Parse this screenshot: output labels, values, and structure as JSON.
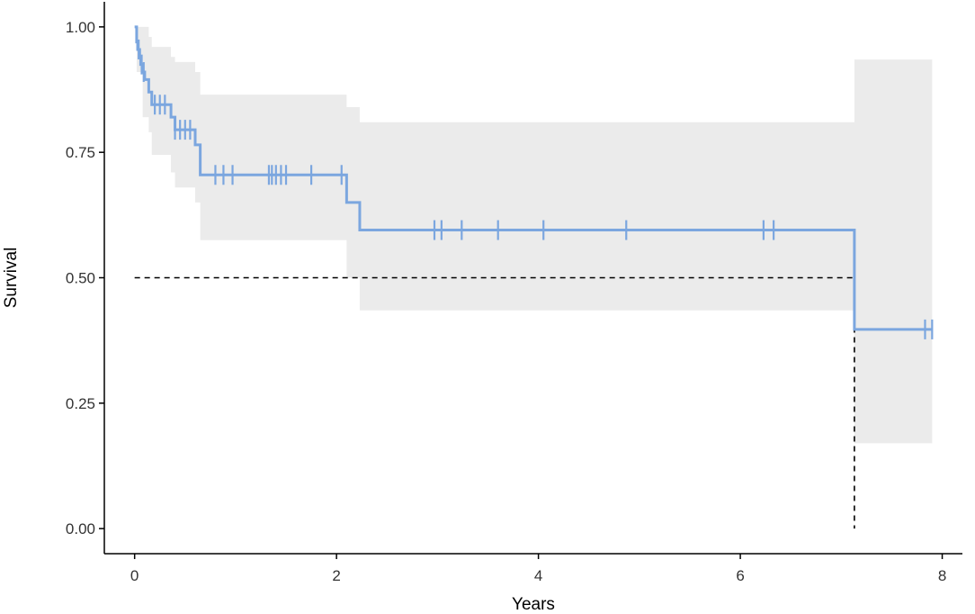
{
  "chart_data": {
    "type": "line",
    "subtype": "kaplan-meier",
    "title": "",
    "xlabel": "Years",
    "ylabel": "Survival",
    "xlim": [
      -0.3,
      8.2
    ],
    "ylim": [
      -0.05,
      1.05
    ],
    "x_ticks": [
      0,
      2,
      4,
      6,
      8
    ],
    "x_tick_labels": [
      "0",
      "2",
      "4",
      "6",
      "8"
    ],
    "y_ticks": [
      0,
      0.25,
      0.5,
      0.75,
      1
    ],
    "y_tick_labels": [
      "0.00",
      "0.25",
      "0.50",
      "0.75",
      "1.00"
    ],
    "grid": false,
    "legend": "none",
    "colors": {
      "line": "#7ba6df",
      "ci_band": "#ebebeb",
      "reference": "#000000"
    },
    "series": [
      {
        "steps": [
          [
            0,
            1.0
          ],
          [
            0.02,
            0.97
          ],
          [
            0.03,
            0.955
          ],
          [
            0.05,
            0.94
          ],
          [
            0.06,
            0.925
          ],
          [
            0.08,
            0.91
          ],
          [
            0.1,
            0.895
          ],
          [
            0.14,
            0.87
          ],
          [
            0.17,
            0.845
          ],
          [
            0.36,
            0.82
          ],
          [
            0.4,
            0.795
          ],
          [
            0.6,
            0.765
          ],
          [
            0.65,
            0.705
          ],
          [
            2.1,
            0.65
          ],
          [
            2.23,
            0.595
          ],
          [
            7.13,
            0.397
          ],
          [
            7.9,
            0.397
          ]
        ],
        "censored": [
          0.04,
          0.07,
          0.09,
          0.2,
          0.25,
          0.3,
          0.4,
          0.45,
          0.5,
          0.55,
          0.8,
          0.88,
          0.97,
          1.33,
          1.36,
          1.4,
          1.45,
          1.5,
          1.75,
          2.05,
          2.97,
          3.04,
          3.24,
          3.6,
          4.05,
          4.87,
          6.23,
          6.33,
          7.83,
          7.9
        ],
        "ci": [
          [
            0,
            1.0,
            1.0
          ],
          [
            0.02,
            0.91,
            1.0
          ],
          [
            0.08,
            0.82,
            1.0
          ],
          [
            0.14,
            0.79,
            0.98
          ],
          [
            0.17,
            0.745,
            0.96
          ],
          [
            0.36,
            0.71,
            0.94
          ],
          [
            0.4,
            0.68,
            0.93
          ],
          [
            0.6,
            0.65,
            0.91
          ],
          [
            0.65,
            0.575,
            0.865
          ],
          [
            2.1,
            0.5,
            0.84
          ],
          [
            2.23,
            0.435,
            0.81
          ],
          [
            7.13,
            0.17,
            0.935
          ],
          [
            7.9,
            0.17,
            0.935
          ]
        ]
      }
    ],
    "median": {
      "survival": 0.5,
      "time": 7.13
    }
  }
}
